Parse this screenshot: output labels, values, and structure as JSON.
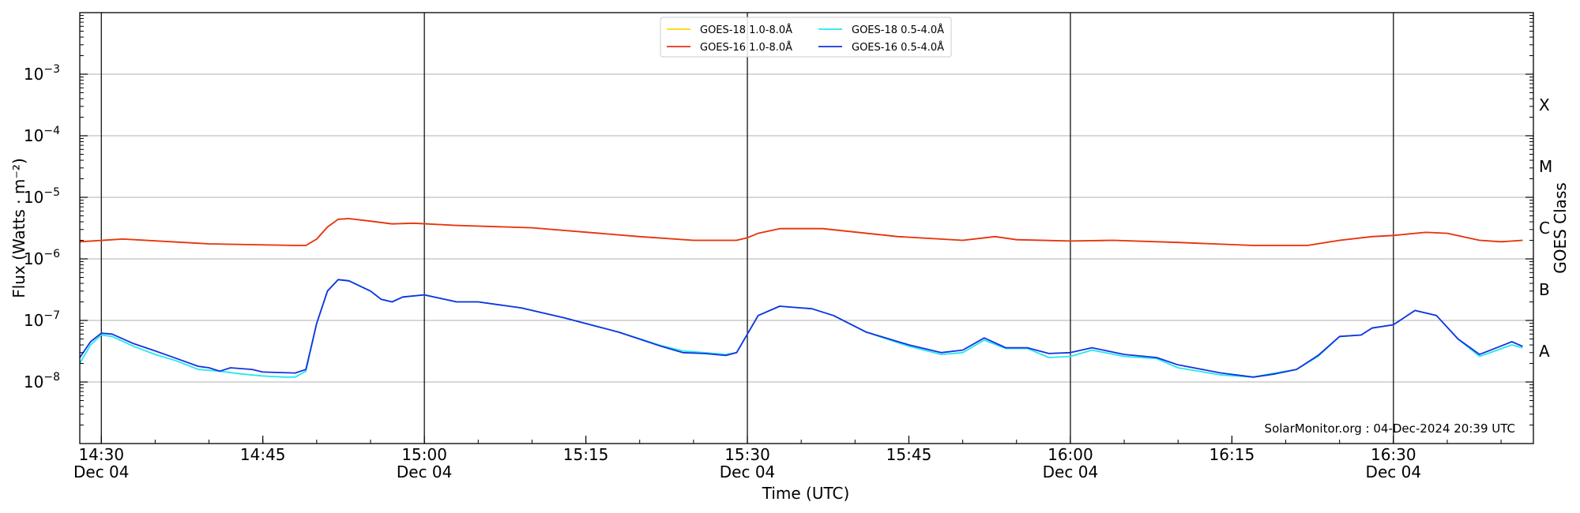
{
  "chart_data": {
    "type": "line",
    "x_unit": "UTC",
    "xlabel": "Time (UTC)",
    "ylabel": "Flux (Watts · m⁻²)",
    "ylabel_right": "GOES Class",
    "yscale": "log",
    "ylim": [
      1e-09,
      0.01
    ],
    "xlim": [
      "14:28",
      "16:43"
    ],
    "grid": "horizontal at decades",
    "vertical_lines": [
      "14:30",
      "15:00",
      "15:30",
      "16:00",
      "16:30"
    ],
    "x_ticks": [
      {
        "t": "14:30",
        "label": "14:30",
        "date": "Dec 04"
      },
      {
        "t": "14:45",
        "label": "14:45",
        "date": ""
      },
      {
        "t": "15:00",
        "label": "15:00",
        "date": "Dec 04"
      },
      {
        "t": "15:15",
        "label": "15:15",
        "date": ""
      },
      {
        "t": "15:30",
        "label": "15:30",
        "date": "Dec 04"
      },
      {
        "t": "15:45",
        "label": "15:45",
        "date": ""
      },
      {
        "t": "16:00",
        "label": "16:00",
        "date": "Dec 04"
      },
      {
        "t": "16:15",
        "label": "16:15",
        "date": ""
      },
      {
        "t": "16:30",
        "label": "16:30",
        "date": "Dec 04"
      }
    ],
    "y_ticks": [
      {
        "exp": -8,
        "label": "10",
        "sup": "−8"
      },
      {
        "exp": -7,
        "label": "10",
        "sup": "−7"
      },
      {
        "exp": -6,
        "label": "10",
        "sup": "−6"
      },
      {
        "exp": -5,
        "label": "10",
        "sup": "−5"
      },
      {
        "exp": -4,
        "label": "10",
        "sup": "−4"
      },
      {
        "exp": -3,
        "label": "10",
        "sup": "−3"
      }
    ],
    "goes_classes": [
      {
        "label": "A",
        "exp": -7.5
      },
      {
        "label": "B",
        "exp": -6.5
      },
      {
        "label": "C",
        "exp": -5.5
      },
      {
        "label": "M",
        "exp": -4.5
      },
      {
        "label": "X",
        "exp": -3.5
      }
    ],
    "legend_position": "top-center",
    "series": [
      {
        "name": "GOES-18 1.0-8.0Å",
        "color": "#FFD700",
        "values": [
          [
            "14:28",
            1.9e-06
          ],
          [
            "14:32",
            2.1e-06
          ],
          [
            "14:40",
            1.75e-06
          ],
          [
            "14:48",
            1.65e-06
          ],
          [
            "14:49",
            1.65e-06
          ],
          [
            "14:50",
            2.1e-06
          ],
          [
            "14:51",
            3.3e-06
          ],
          [
            "14:52",
            4.4e-06
          ],
          [
            "14:53",
            4.5e-06
          ],
          [
            "14:55",
            4.1e-06
          ],
          [
            "14:57",
            3.7e-06
          ],
          [
            "14:59",
            3.8e-06
          ],
          [
            "15:03",
            3.5e-06
          ],
          [
            "15:10",
            3.2e-06
          ],
          [
            "15:20",
            2.3e-06
          ],
          [
            "15:25",
            2e-06
          ],
          [
            "15:29",
            2e-06
          ],
          [
            "15:30",
            2.2e-06
          ],
          [
            "15:31",
            2.6e-06
          ],
          [
            "15:33",
            3.1e-06
          ],
          [
            "15:37",
            3.1e-06
          ],
          [
            "15:44",
            2.3e-06
          ],
          [
            "15:50",
            2e-06
          ],
          [
            "15:53",
            2.3e-06
          ],
          [
            "15:55",
            2.05e-06
          ],
          [
            "16:00",
            1.95e-06
          ],
          [
            "16:04",
            2e-06
          ],
          [
            "16:10",
            1.85e-06
          ],
          [
            "16:17",
            1.65e-06
          ],
          [
            "16:22",
            1.65e-06
          ],
          [
            "16:25",
            2e-06
          ],
          [
            "16:28",
            2.3e-06
          ],
          [
            "16:30",
            2.4e-06
          ],
          [
            "16:33",
            2.7e-06
          ],
          [
            "16:35",
            2.6e-06
          ],
          [
            "16:38",
            2e-06
          ],
          [
            "16:40",
            1.9e-06
          ],
          [
            "16:42",
            2e-06
          ]
        ]
      },
      {
        "name": "GOES-16 1.0-8.0Å",
        "color": "#E8311A",
        "values": [
          [
            "14:28",
            1.9e-06
          ],
          [
            "14:32",
            2.1e-06
          ],
          [
            "14:40",
            1.75e-06
          ],
          [
            "14:48",
            1.65e-06
          ],
          [
            "14:49",
            1.65e-06
          ],
          [
            "14:50",
            2.1e-06
          ],
          [
            "14:51",
            3.3e-06
          ],
          [
            "14:52",
            4.4e-06
          ],
          [
            "14:53",
            4.5e-06
          ],
          [
            "14:55",
            4.1e-06
          ],
          [
            "14:57",
            3.7e-06
          ],
          [
            "14:59",
            3.8e-06
          ],
          [
            "15:03",
            3.5e-06
          ],
          [
            "15:10",
            3.2e-06
          ],
          [
            "15:20",
            2.3e-06
          ],
          [
            "15:25",
            2e-06
          ],
          [
            "15:29",
            2e-06
          ],
          [
            "15:30",
            2.2e-06
          ],
          [
            "15:31",
            2.6e-06
          ],
          [
            "15:33",
            3.1e-06
          ],
          [
            "15:37",
            3.1e-06
          ],
          [
            "15:44",
            2.3e-06
          ],
          [
            "15:50",
            2e-06
          ],
          [
            "15:53",
            2.3e-06
          ],
          [
            "15:55",
            2.05e-06
          ],
          [
            "16:00",
            1.95e-06
          ],
          [
            "16:04",
            2e-06
          ],
          [
            "16:10",
            1.85e-06
          ],
          [
            "16:17",
            1.65e-06
          ],
          [
            "16:22",
            1.65e-06
          ],
          [
            "16:25",
            2e-06
          ],
          [
            "16:28",
            2.3e-06
          ],
          [
            "16:30",
            2.4e-06
          ],
          [
            "16:33",
            2.7e-06
          ],
          [
            "16:35",
            2.6e-06
          ],
          [
            "16:38",
            2e-06
          ],
          [
            "16:40",
            1.9e-06
          ],
          [
            "16:42",
            2e-06
          ]
        ]
      },
      {
        "name": "GOES-18 0.5-4.0Å",
        "color": "#22E8F0",
        "values": [
          [
            "14:28",
            2e-08
          ],
          [
            "14:29",
            4e-08
          ],
          [
            "14:30",
            5.8e-08
          ],
          [
            "14:31",
            5.5e-08
          ],
          [
            "14:33",
            3.8e-08
          ],
          [
            "14:35",
            2.8e-08
          ],
          [
            "14:37",
            2.2e-08
          ],
          [
            "14:39",
            1.6e-08
          ],
          [
            "14:41",
            1.5e-08
          ],
          [
            "14:43",
            1.35e-08
          ],
          [
            "14:45",
            1.25e-08
          ],
          [
            "14:47",
            1.2e-08
          ],
          [
            "14:48",
            1.2e-08
          ],
          [
            "14:49",
            1.5e-08
          ],
          [
            "14:50",
            9e-08
          ],
          [
            "14:51",
            3e-07
          ],
          [
            "14:52",
            4.6e-07
          ],
          [
            "14:53",
            4.4e-07
          ],
          [
            "14:55",
            3e-07
          ],
          [
            "14:56",
            2.2e-07
          ],
          [
            "14:57",
            2e-07
          ],
          [
            "14:58",
            2.4e-07
          ],
          [
            "15:00",
            2.6e-07
          ],
          [
            "15:03",
            2e-07
          ],
          [
            "15:05",
            2e-07
          ],
          [
            "15:09",
            1.6e-07
          ],
          [
            "15:13",
            1.1e-07
          ],
          [
            "15:18",
            6.5e-08
          ],
          [
            "15:22",
            3.9e-08
          ],
          [
            "15:24",
            3.2e-08
          ],
          [
            "15:26",
            3e-08
          ],
          [
            "15:28",
            2.8e-08
          ],
          [
            "15:29",
            3e-08
          ],
          [
            "15:31",
            1.2e-07
          ],
          [
            "15:33",
            1.7e-07
          ],
          [
            "15:36",
            1.55e-07
          ],
          [
            "15:38",
            1.2e-07
          ],
          [
            "15:41",
            6.5e-08
          ],
          [
            "15:45",
            3.8e-08
          ],
          [
            "15:48",
            2.8e-08
          ],
          [
            "15:50",
            3e-08
          ],
          [
            "15:52",
            4.8e-08
          ],
          [
            "15:54",
            3.5e-08
          ],
          [
            "15:56",
            3.5e-08
          ],
          [
            "15:58",
            2.5e-08
          ],
          [
            "16:00",
            2.6e-08
          ],
          [
            "16:02",
            3.3e-08
          ],
          [
            "16:05",
            2.6e-08
          ],
          [
            "16:08",
            2.4e-08
          ],
          [
            "16:10",
            1.7e-08
          ],
          [
            "16:14",
            1.3e-08
          ],
          [
            "16:17",
            1.2e-08
          ],
          [
            "16:19",
            1.4e-08
          ],
          [
            "16:21",
            1.6e-08
          ],
          [
            "16:23",
            2.6e-08
          ],
          [
            "16:25",
            5.5e-08
          ],
          [
            "16:27",
            5.8e-08
          ],
          [
            "16:28",
            7.5e-08
          ],
          [
            "16:30",
            8.5e-08
          ],
          [
            "16:32",
            1.45e-07
          ],
          [
            "16:34",
            1.2e-07
          ],
          [
            "16:36",
            5e-08
          ],
          [
            "16:38",
            2.6e-08
          ],
          [
            "16:41",
            4e-08
          ],
          [
            "16:42",
            3.6e-08
          ]
        ]
      },
      {
        "name": "GOES-16 0.5-4.0Å",
        "color": "#1432E0",
        "values": [
          [
            "14:28",
            2.5e-08
          ],
          [
            "14:29",
            4.5e-08
          ],
          [
            "14:30",
            6.2e-08
          ],
          [
            "14:31",
            6e-08
          ],
          [
            "14:33",
            4.2e-08
          ],
          [
            "14:35",
            3.2e-08
          ],
          [
            "14:37",
            2.4e-08
          ],
          [
            "14:39",
            1.8e-08
          ],
          [
            "14:40",
            1.7e-08
          ],
          [
            "14:41",
            1.5e-08
          ],
          [
            "14:42",
            1.7e-08
          ],
          [
            "14:44",
            1.6e-08
          ],
          [
            "14:45",
            1.45e-08
          ],
          [
            "14:48",
            1.4e-08
          ],
          [
            "14:49",
            1.6e-08
          ],
          [
            "14:50",
            9e-08
          ],
          [
            "14:51",
            3e-07
          ],
          [
            "14:52",
            4.6e-07
          ],
          [
            "14:53",
            4.4e-07
          ],
          [
            "14:55",
            3e-07
          ],
          [
            "14:56",
            2.2e-07
          ],
          [
            "14:57",
            2e-07
          ],
          [
            "14:58",
            2.4e-07
          ],
          [
            "15:00",
            2.6e-07
          ],
          [
            "15:03",
            2e-07
          ],
          [
            "15:05",
            2e-07
          ],
          [
            "15:09",
            1.6e-07
          ],
          [
            "15:13",
            1.1e-07
          ],
          [
            "15:18",
            6.5e-08
          ],
          [
            "15:22",
            3.8e-08
          ],
          [
            "15:24",
            3e-08
          ],
          [
            "15:26",
            2.9e-08
          ],
          [
            "15:28",
            2.7e-08
          ],
          [
            "15:29",
            3e-08
          ],
          [
            "15:31",
            1.2e-07
          ],
          [
            "15:33",
            1.7e-07
          ],
          [
            "15:36",
            1.55e-07
          ],
          [
            "15:38",
            1.2e-07
          ],
          [
            "15:41",
            6.5e-08
          ],
          [
            "15:45",
            4e-08
          ],
          [
            "15:48",
            3e-08
          ],
          [
            "15:50",
            3.3e-08
          ],
          [
            "15:52",
            5.2e-08
          ],
          [
            "15:54",
            3.6e-08
          ],
          [
            "15:56",
            3.6e-08
          ],
          [
            "15:58",
            2.9e-08
          ],
          [
            "16:00",
            3e-08
          ],
          [
            "16:02",
            3.6e-08
          ],
          [
            "16:05",
            2.8e-08
          ],
          [
            "16:08",
            2.5e-08
          ],
          [
            "16:10",
            1.9e-08
          ],
          [
            "16:14",
            1.4e-08
          ],
          [
            "16:17",
            1.2e-08
          ],
          [
            "16:19",
            1.35e-08
          ],
          [
            "16:21",
            1.6e-08
          ],
          [
            "16:23",
            2.7e-08
          ],
          [
            "16:25",
            5.5e-08
          ],
          [
            "16:27",
            5.8e-08
          ],
          [
            "16:28",
            7.5e-08
          ],
          [
            "16:30",
            8.5e-08
          ],
          [
            "16:32",
            1.45e-07
          ],
          [
            "16:34",
            1.2e-07
          ],
          [
            "16:36",
            5e-08
          ],
          [
            "16:38",
            2.8e-08
          ],
          [
            "16:41",
            4.5e-08
          ],
          [
            "16:42",
            3.8e-08
          ]
        ]
      }
    ],
    "annotation": "SolarMonitor.org : 04-Dec-2024 20:39 UTC"
  }
}
